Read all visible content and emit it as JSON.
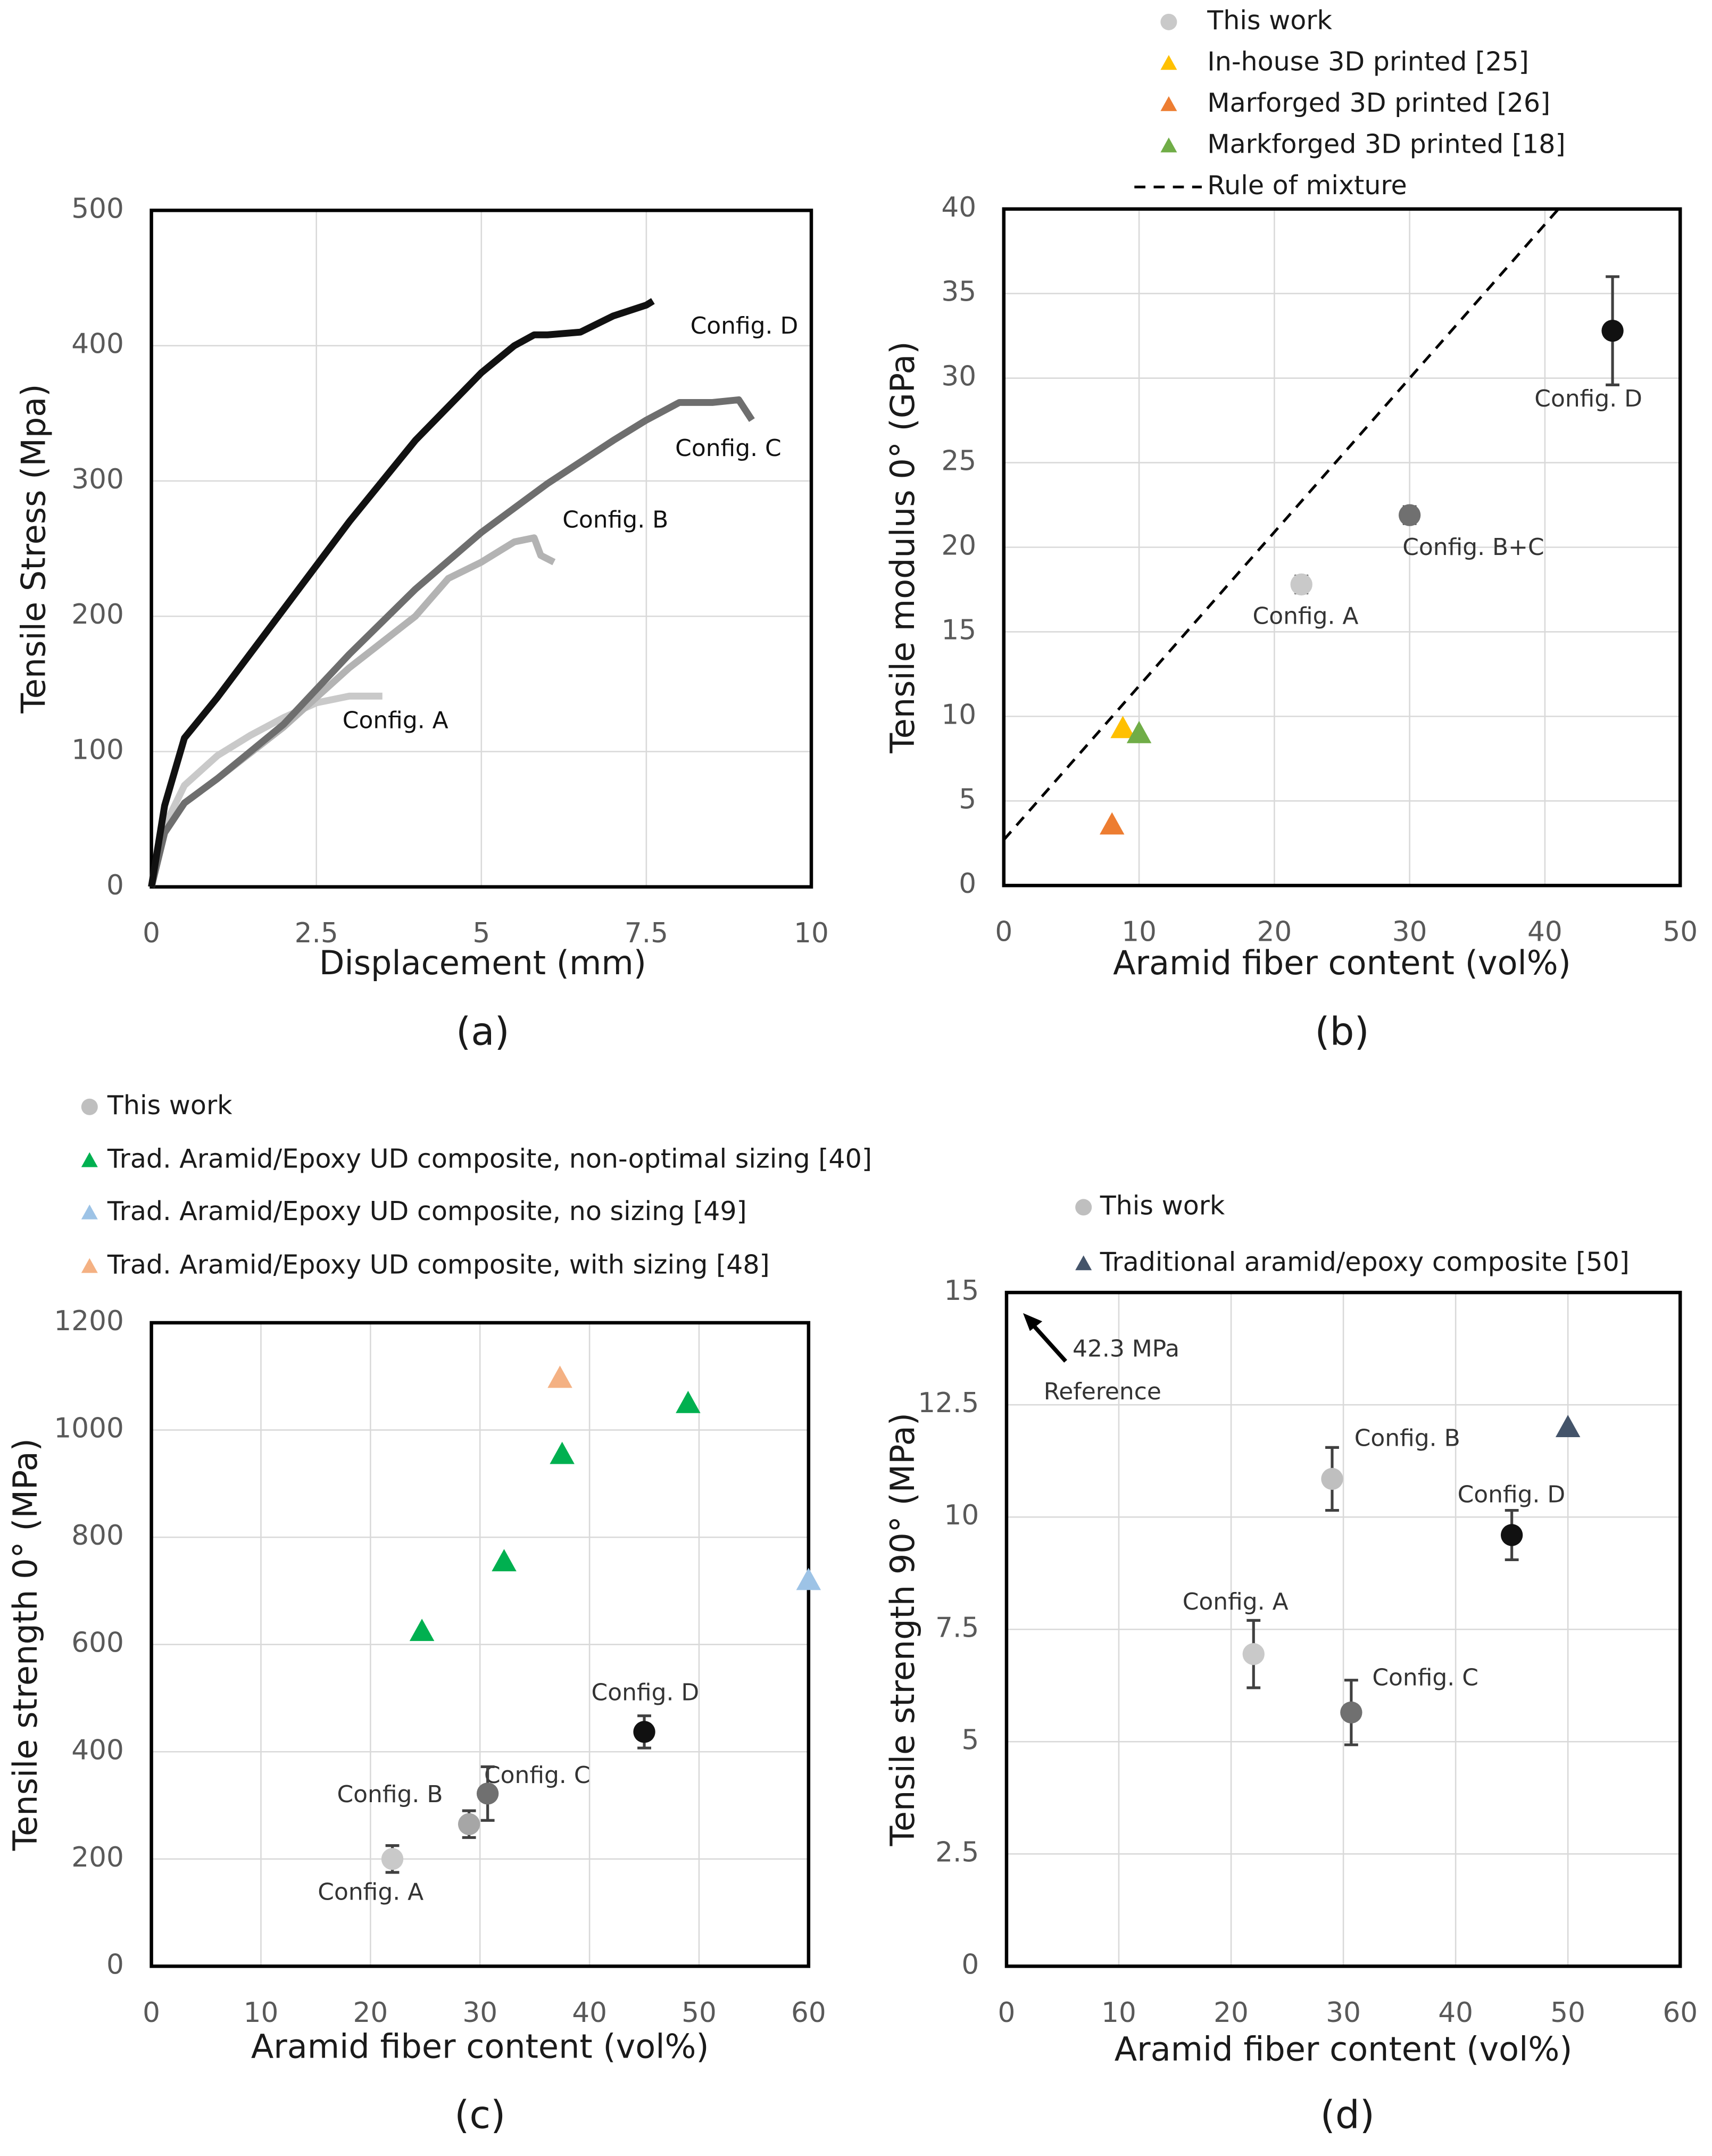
{
  "chart_data": [
    {
      "type": "line",
      "caption": "(a)",
      "xlabel": "Displacement (mm)",
      "ylabel": "Tensile Stress (Mpa)",
      "xlim": [
        0,
        10
      ],
      "xticks": [
        0,
        2.5,
        5,
        7.5,
        10
      ],
      "ylim": [
        0,
        500
      ],
      "yticks": [
        0,
        100,
        200,
        300,
        400,
        500
      ],
      "grid": true,
      "series": [
        {
          "name": "Config. A",
          "color": "#c9c9c9",
          "x": [
            0,
            0.2,
            0.5,
            1,
            1.5,
            2,
            2.5,
            3,
            3.5
          ],
          "values": [
            0,
            45,
            75,
            97,
            112,
            125,
            136,
            141,
            141
          ]
        },
        {
          "name": "Config. B",
          "color": "#b3b3b3",
          "x": [
            0,
            0.2,
            0.5,
            1,
            2,
            3,
            4,
            4.5,
            5,
            5.5,
            5.8,
            5.9,
            6.1
          ],
          "values": [
            0,
            40,
            62,
            80,
            118,
            162,
            200,
            228,
            240,
            255,
            258,
            245,
            240
          ]
        },
        {
          "name": "Config. C",
          "color": "#6e6e6e",
          "x": [
            0,
            0.2,
            0.5,
            1,
            2,
            3,
            4,
            5,
            6,
            7,
            7.5,
            8,
            8.5,
            8.9,
            9.1
          ],
          "values": [
            0,
            40,
            62,
            80,
            120,
            172,
            220,
            262,
            298,
            330,
            345,
            358,
            358,
            360,
            345
          ]
        },
        {
          "name": "Config. D",
          "color": "#111111",
          "x": [
            0,
            0.2,
            0.5,
            1,
            2,
            3,
            4,
            5,
            5.5,
            5.8,
            6,
            6.5,
            7,
            7.5,
            7.6
          ],
          "values": [
            0,
            60,
            110,
            140,
            205,
            270,
            330,
            380,
            400,
            408,
            408,
            410,
            422,
            430,
            433
          ]
        }
      ]
    },
    {
      "type": "scatter",
      "caption": "(b)",
      "xlabel": "Aramid fiber content (vol%)",
      "ylabel": "Tensile modulus 0° (GPa)",
      "xlim": [
        0,
        50
      ],
      "xticks": [
        0,
        10,
        20,
        30,
        40,
        50
      ],
      "ylim": [
        0,
        40
      ],
      "yticks": [
        0,
        5,
        10,
        15,
        20,
        25,
        30,
        35,
        40
      ],
      "grid": true,
      "legend": "top",
      "annotations": [
        "Config. A",
        "Config. B+C",
        "Config. D"
      ],
      "series": [
        {
          "name": "This work",
          "marker": "circle",
          "color": "#c9c9c9",
          "x": [
            22,
            30,
            45
          ],
          "values": [
            17.8,
            21.9,
            32.8
          ],
          "errors": [
            0.5,
            0.5,
            3.2
          ],
          "point_colors": [
            "#c9c9c9",
            "#707070",
            "#111111"
          ]
        },
        {
          "name": "In-house 3D printed [25]",
          "marker": "triangle",
          "color": "#ffc000",
          "x": [
            8.8
          ],
          "values": [
            9.3
          ]
        },
        {
          "name": "Marforged 3D printed [26]",
          "marker": "triangle",
          "color": "#ed7d31",
          "x": [
            8
          ],
          "values": [
            3.6
          ]
        },
        {
          "name": "Markforged 3D printed [18]",
          "marker": "triangle",
          "color": "#70ad47",
          "x": [
            10
          ],
          "values": [
            9
          ]
        },
        {
          "name": "Rule of mixture",
          "marker": "dashed-line",
          "color": "#000000",
          "x": [
            0,
            41
          ],
          "values": [
            2.7,
            40
          ]
        }
      ]
    },
    {
      "type": "scatter",
      "caption": "(c)",
      "xlabel": "Aramid fiber content (vol%)",
      "ylabel": "Tensile strength 0° (MPa)",
      "xlim": [
        0,
        60
      ],
      "xticks": [
        0,
        10,
        20,
        30,
        40,
        50,
        60
      ],
      "ylim": [
        0,
        1200
      ],
      "yticks": [
        0,
        200,
        400,
        600,
        800,
        1000,
        1200
      ],
      "grid": true,
      "legend": "top",
      "annotations": [
        "Config. A",
        "Config. B",
        "Config. C",
        "Config. D"
      ],
      "series": [
        {
          "name": "This work",
          "marker": "circle",
          "color": "#bfbfbf",
          "x": [
            22,
            29,
            30.7,
            45
          ],
          "values": [
            200,
            265,
            322,
            437
          ],
          "errors": [
            25,
            25,
            50,
            30
          ],
          "point_colors": [
            "#c9c9c9",
            "#a6a6a6",
            "#707070",
            "#111111"
          ]
        },
        {
          "name": "Trad. Aramid/Epoxy UD composite, non-optimal sizing [40]",
          "marker": "triangle",
          "color": "#00b050",
          "x": [
            24.7,
            32.2,
            37.5,
            49
          ],
          "values": [
            625,
            755,
            955,
            1050
          ]
        },
        {
          "name": "Trad. Aramid/Epoxy UD composite, no sizing [49]",
          "marker": "triangle",
          "color": "#9dc3e6",
          "x": [
            60
          ],
          "values": [
            720
          ]
        },
        {
          "name": "Trad. Aramid/Epoxy UD composite, with sizing [48]",
          "marker": "triangle",
          "color": "#f4b183",
          "x": [
            37.3
          ],
          "values": [
            1097
          ]
        }
      ]
    },
    {
      "type": "scatter",
      "caption": "(d)",
      "xlabel": "Aramid fiber content (vol%)",
      "ylabel": "Tensile strength 90° (MPa)",
      "xlim": [
        0,
        60
      ],
      "xticks": [
        0,
        10,
        20,
        30,
        40,
        50,
        60
      ],
      "ylim": [
        0,
        15
      ],
      "yticks": [
        0,
        2.5,
        5,
        7.5,
        10,
        12.5,
        15
      ],
      "grid": true,
      "legend": "top",
      "annotations": [
        "Config. A",
        "Config. B",
        "Config. C",
        "Config. D",
        "42.3 MPa",
        "Reference"
      ],
      "series": [
        {
          "name": "This work",
          "marker": "circle",
          "color": "#bfbfbf",
          "x": [
            22,
            29,
            30.7,
            45
          ],
          "values": [
            6.95,
            10.85,
            5.65,
            9.6
          ],
          "errors": [
            0.75,
            0.7,
            0.72,
            0.55
          ],
          "point_colors": [
            "#c9c9c9",
            "#bfbfbf",
            "#707070",
            "#111111"
          ]
        },
        {
          "name": "Traditional aramid/epoxy composite [50]",
          "marker": "triangle",
          "color": "#44546a",
          "x": [
            50
          ],
          "values": [
            12
          ]
        }
      ]
    }
  ]
}
